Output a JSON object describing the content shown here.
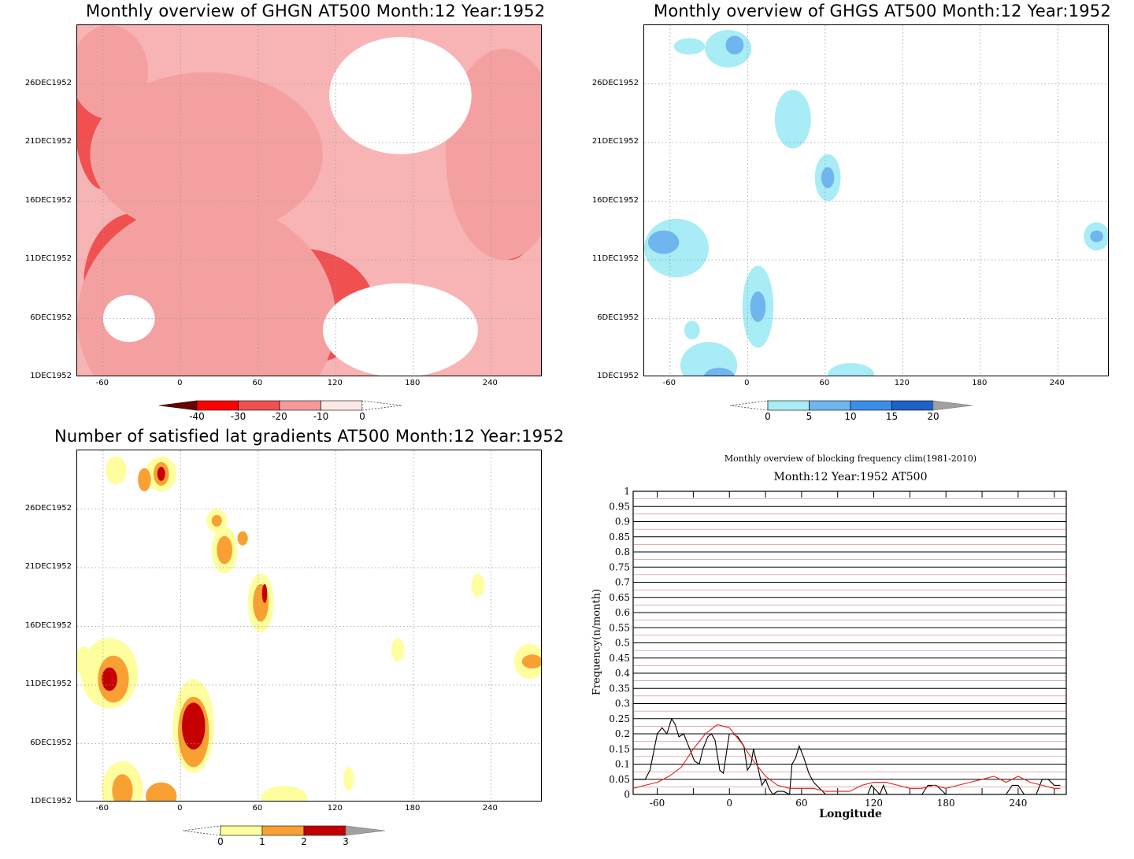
{
  "chart_data": [
    {
      "type": "heatmap",
      "title": "Monthly overview of GHGN AT500 Month:12 Year:1952",
      "x_ticks": [
        "-60",
        "0",
        "60",
        "120",
        "180",
        "240"
      ],
      "y_ticks": [
        "1DEC1952",
        "6DEC1952",
        "11DEC1952",
        "16DEC1952",
        "21DEC1952",
        "26DEC1952"
      ],
      "xlim": [
        -80,
        280
      ],
      "ylim": [
        1,
        31
      ],
      "colorbar": {
        "labels": [
          "-40",
          "-30",
          "-20",
          "-10",
          "0"
        ],
        "colors": [
          "#6b0000",
          "#ff0000",
          "#f05050",
          "#f59a9a",
          "#fde8e8"
        ]
      },
      "blobs": [
        {
          "lon": -60,
          "day": 23,
          "rlon": 22,
          "rday": 6,
          "level": 3
        },
        {
          "lon": -35,
          "day": 9,
          "rlon": 40,
          "rday": 6,
          "level": 3
        },
        {
          "lon": 90,
          "day": 7,
          "rlon": 60,
          "rday": 5,
          "level": 3
        },
        {
          "lon": 95,
          "day": 7,
          "rlon": 10,
          "rday": 1.5,
          "level": 4
        },
        {
          "lon": 30,
          "day": 19,
          "rlon": 45,
          "rday": 4,
          "level": 3
        },
        {
          "lon": 255,
          "day": 22,
          "rlon": 30,
          "rday": 4,
          "level": 3
        },
        {
          "lon": 255,
          "day": 14,
          "rlon": 18,
          "rday": 3,
          "level": 3
        },
        {
          "lon": 248,
          "day": 14,
          "rlon": 5,
          "rday": 1,
          "level": 4
        },
        {
          "lon": -18,
          "day": 2,
          "rlon": 6,
          "rday": 1,
          "level": 4
        },
        {
          "lon": 20,
          "day": 6,
          "rlon": 100,
          "rday": 10,
          "level": 2
        },
        {
          "lon": 20,
          "day": 20,
          "rlon": 90,
          "rday": 7,
          "level": 2
        },
        {
          "lon": 250,
          "day": 20,
          "rlon": 45,
          "rday": 9,
          "level": 2
        },
        {
          "lon": -55,
          "day": 27,
          "rlon": 30,
          "rday": 4,
          "level": 2
        },
        {
          "lon": 170,
          "day": 5,
          "rlon": 60,
          "rday": 4,
          "level": 0
        },
        {
          "lon": 170,
          "day": 25,
          "rlon": 55,
          "rday": 5,
          "level": 0
        },
        {
          "lon": -40,
          "day": 6,
          "rlon": 20,
          "rday": 2,
          "level": 0
        }
      ]
    },
    {
      "type": "heatmap",
      "title": "Monthly overview of GHGS AT500 Month:12 Year:1952",
      "x_ticks": [
        "-60",
        "0",
        "60",
        "120",
        "180",
        "240"
      ],
      "y_ticks": [
        "1DEC1952",
        "6DEC1952",
        "11DEC1952",
        "16DEC1952",
        "21DEC1952",
        "26DEC1952"
      ],
      "xlim": [
        -80,
        280
      ],
      "ylim": [
        1,
        31
      ],
      "colorbar": {
        "labels": [
          "0",
          "5",
          "10",
          "15",
          "20"
        ],
        "colors": [
          "#a8ecf5",
          "#6fb6ee",
          "#3b8ee8",
          "#1d62c8"
        ]
      },
      "blobs": [
        {
          "lon": -15,
          "day": 29,
          "rlon": 18,
          "rday": 1.6,
          "level": 1
        },
        {
          "lon": -10,
          "day": 29.3,
          "rlon": 7,
          "rday": 0.8,
          "level": 2
        },
        {
          "lon": -45,
          "day": 29.2,
          "rlon": 12,
          "rday": 0.7,
          "level": 1
        },
        {
          "lon": 35,
          "day": 23,
          "rlon": 14,
          "rday": 2.5,
          "level": 1
        },
        {
          "lon": 62,
          "day": 18,
          "rlon": 10,
          "rday": 2,
          "level": 1
        },
        {
          "lon": 62,
          "day": 18,
          "rlon": 5,
          "rday": 0.9,
          "level": 2
        },
        {
          "lon": -55,
          "day": 12,
          "rlon": 25,
          "rday": 2.5,
          "level": 1
        },
        {
          "lon": -65,
          "day": 12.5,
          "rlon": 12,
          "rday": 1,
          "level": 2
        },
        {
          "lon": 8,
          "day": 7,
          "rlon": 12,
          "rday": 3.5,
          "level": 1
        },
        {
          "lon": 8,
          "day": 7,
          "rlon": 6,
          "rday": 1.3,
          "level": 2
        },
        {
          "lon": -30,
          "day": 2,
          "rlon": 22,
          "rday": 2,
          "level": 1
        },
        {
          "lon": -22,
          "day": 1,
          "rlon": 12,
          "rday": 0.8,
          "level": 2
        },
        {
          "lon": -43,
          "day": 5,
          "rlon": 6,
          "rday": 0.8,
          "level": 1
        },
        {
          "lon": 80,
          "day": 1.2,
          "rlon": 18,
          "rday": 1,
          "level": 1
        },
        {
          "lon": 270,
          "day": 13,
          "rlon": 10,
          "rday": 1.2,
          "level": 1
        },
        {
          "lon": 270,
          "day": 13,
          "rlon": 5,
          "rday": 0.5,
          "level": 2
        }
      ]
    },
    {
      "type": "heatmap",
      "title": "Number of satisfied lat gradients AT500 Month:12 Year:1952",
      "x_ticks": [
        "-60",
        "0",
        "60",
        "120",
        "180",
        "240"
      ],
      "y_ticks": [
        "1DEC1952",
        "6DEC1952",
        "11DEC1952",
        "16DEC1952",
        "21DEC1952",
        "26DEC1952"
      ],
      "xlim": [
        -80,
        280
      ],
      "ylim": [
        1,
        31
      ],
      "colorbar": {
        "labels": [
          "0",
          "1",
          "2",
          "3"
        ],
        "colors": [
          "#fefe9e",
          "#f9a032",
          "#c40000"
        ]
      },
      "blobs": [
        {
          "lon": -15,
          "day": 29,
          "rlon": 12,
          "rday": 1.5,
          "level": 1
        },
        {
          "lon": -15,
          "day": 29,
          "rlon": 6,
          "rday": 1,
          "level": 2
        },
        {
          "lon": -15,
          "day": 29,
          "rlon": 3,
          "rday": 0.6,
          "level": 3
        },
        {
          "lon": -28,
          "day": 28.5,
          "rlon": 5,
          "rday": 1,
          "level": 2
        },
        {
          "lon": -50,
          "day": 29.3,
          "rlon": 8,
          "rday": 1.2,
          "level": 1
        },
        {
          "lon": 28,
          "day": 25,
          "rlon": 8,
          "rday": 1,
          "level": 1
        },
        {
          "lon": 28,
          "day": 25,
          "rlon": 4,
          "rday": 0.5,
          "level": 2
        },
        {
          "lon": 34,
          "day": 22.5,
          "rlon": 10,
          "rday": 2,
          "level": 1
        },
        {
          "lon": 34,
          "day": 22.5,
          "rlon": 6,
          "rday": 1.2,
          "level": 2
        },
        {
          "lon": 48,
          "day": 23.5,
          "rlon": 4,
          "rday": 0.6,
          "level": 2
        },
        {
          "lon": 62,
          "day": 18,
          "rlon": 10,
          "rday": 2.5,
          "level": 1
        },
        {
          "lon": 62,
          "day": 18,
          "rlon": 6,
          "rday": 1.6,
          "level": 2
        },
        {
          "lon": 65,
          "day": 18.8,
          "rlon": 2,
          "rday": 0.8,
          "level": 3
        },
        {
          "lon": -55,
          "day": 12,
          "rlon": 22,
          "rday": 3,
          "level": 1
        },
        {
          "lon": -52,
          "day": 11.5,
          "rlon": 12,
          "rday": 2,
          "level": 2
        },
        {
          "lon": -55,
          "day": 11.5,
          "rlon": 6,
          "rday": 1,
          "level": 3
        },
        {
          "lon": 10,
          "day": 7.5,
          "rlon": 16,
          "rday": 4,
          "level": 1
        },
        {
          "lon": 10,
          "day": 7,
          "rlon": 12,
          "rday": 3,
          "level": 2
        },
        {
          "lon": 10,
          "day": 7.5,
          "rlon": 9,
          "rday": 2,
          "level": 3
        },
        {
          "lon": -45,
          "day": 2,
          "rlon": 16,
          "rday": 2.5,
          "level": 1
        },
        {
          "lon": -45,
          "day": 2,
          "rlon": 8,
          "rday": 1.4,
          "level": 2
        },
        {
          "lon": -15,
          "day": 1.5,
          "rlon": 12,
          "rday": 1.2,
          "level": 2
        },
        {
          "lon": 80,
          "day": 1.4,
          "rlon": 18,
          "rday": 1,
          "level": 1
        },
        {
          "lon": 130,
          "day": 3,
          "rlon": 4,
          "rday": 1,
          "level": 1
        },
        {
          "lon": 168,
          "day": 14,
          "rlon": 5,
          "rday": 1,
          "level": 1
        },
        {
          "lon": 230,
          "day": 19.5,
          "rlon": 5,
          "rday": 1,
          "level": 1
        },
        {
          "lon": 270,
          "day": 13,
          "rlon": 12,
          "rday": 1.5,
          "level": 1
        },
        {
          "lon": 272,
          "day": 13,
          "rlon": 8,
          "rday": 0.6,
          "level": 2
        },
        {
          "lon": -75,
          "day": 13,
          "rlon": 6,
          "rday": 1.3,
          "level": 1
        }
      ]
    },
    {
      "type": "line",
      "title": "Monthly overview of blocking frequency clim(1981-2010)",
      "subtitle": "Month:12 Year:1952   AT500",
      "xlabel": "Longitude",
      "ylabel": "Frequency(n/month)",
      "xlim": [
        -80,
        280
      ],
      "ylim": [
        0,
        1
      ],
      "x_ticks": [
        "-60",
        "0",
        "60",
        "120",
        "180",
        "240"
      ],
      "y_ticks": [
        "0",
        "0.05",
        "0.1",
        "0.15",
        "0.2",
        "0.25",
        "0.3",
        "0.35",
        "0.4",
        "0.45",
        "0.5",
        "0.55",
        "0.6",
        "0.65",
        "0.7",
        "0.75",
        "0.8",
        "0.85",
        "0.9",
        "0.95",
        "1"
      ],
      "series": [
        {
          "color": "#000000",
          "x": [
            -80,
            -70,
            -66,
            -63,
            -60,
            -56,
            -52,
            -48,
            -45,
            -42,
            -38,
            -35,
            -32,
            -29,
            -25,
            -22,
            -18,
            -15,
            -12,
            -8,
            -5,
            -2,
            0,
            3,
            7,
            12,
            15,
            18,
            20,
            23,
            27,
            30,
            33,
            36,
            40,
            45,
            50,
            52,
            55,
            58,
            62,
            66,
            70,
            75,
            80,
            90,
            100,
            110,
            115,
            118,
            125,
            128,
            131,
            160,
            165,
            172,
            180,
            190,
            230,
            235,
            240,
            245,
            250,
            255,
            260,
            265,
            270,
            275
          ],
          "y": [
            0.05,
            0.05,
            0.08,
            0.14,
            0.2,
            0.22,
            0.2,
            0.25,
            0.23,
            0.19,
            0.2,
            0.17,
            0.14,
            0.11,
            0.1,
            0.15,
            0.19,
            0.2,
            0.18,
            0.08,
            0.07,
            0.15,
            0.2,
            0.2,
            0.19,
            0.16,
            0.08,
            0.1,
            0.15,
            0.1,
            0.03,
            0.05,
            0.02,
            0.0,
            0.01,
            0.01,
            0.0,
            0.1,
            0.12,
            0.16,
            0.12,
            0.07,
            0.04,
            0.02,
            0.0,
            0.0,
            0.0,
            0.0,
            0.0,
            0.03,
            0.0,
            0.03,
            0.0,
            0.0,
            0.03,
            0.03,
            0.0,
            0.0,
            0.0,
            0.03,
            0.03,
            0.0,
            0.0,
            0.0,
            0.05,
            0.05,
            0.03,
            0.03
          ]
        },
        {
          "color": "#e02020",
          "x": [
            -80,
            -70,
            -60,
            -50,
            -40,
            -30,
            -20,
            -10,
            0,
            10,
            20,
            30,
            40,
            50,
            60,
            70,
            80,
            90,
            100,
            110,
            120,
            130,
            140,
            150,
            160,
            170,
            180,
            190,
            200,
            210,
            220,
            230,
            240,
            250,
            260,
            270,
            275
          ],
          "y": [
            0.02,
            0.03,
            0.04,
            0.06,
            0.09,
            0.15,
            0.2,
            0.23,
            0.22,
            0.17,
            0.11,
            0.06,
            0.03,
            0.02,
            0.02,
            0.02,
            0.01,
            0.01,
            0.01,
            0.03,
            0.04,
            0.04,
            0.03,
            0.02,
            0.02,
            0.03,
            0.02,
            0.03,
            0.04,
            0.05,
            0.06,
            0.04,
            0.06,
            0.04,
            0.03,
            0.02,
            0.02
          ]
        }
      ]
    }
  ]
}
